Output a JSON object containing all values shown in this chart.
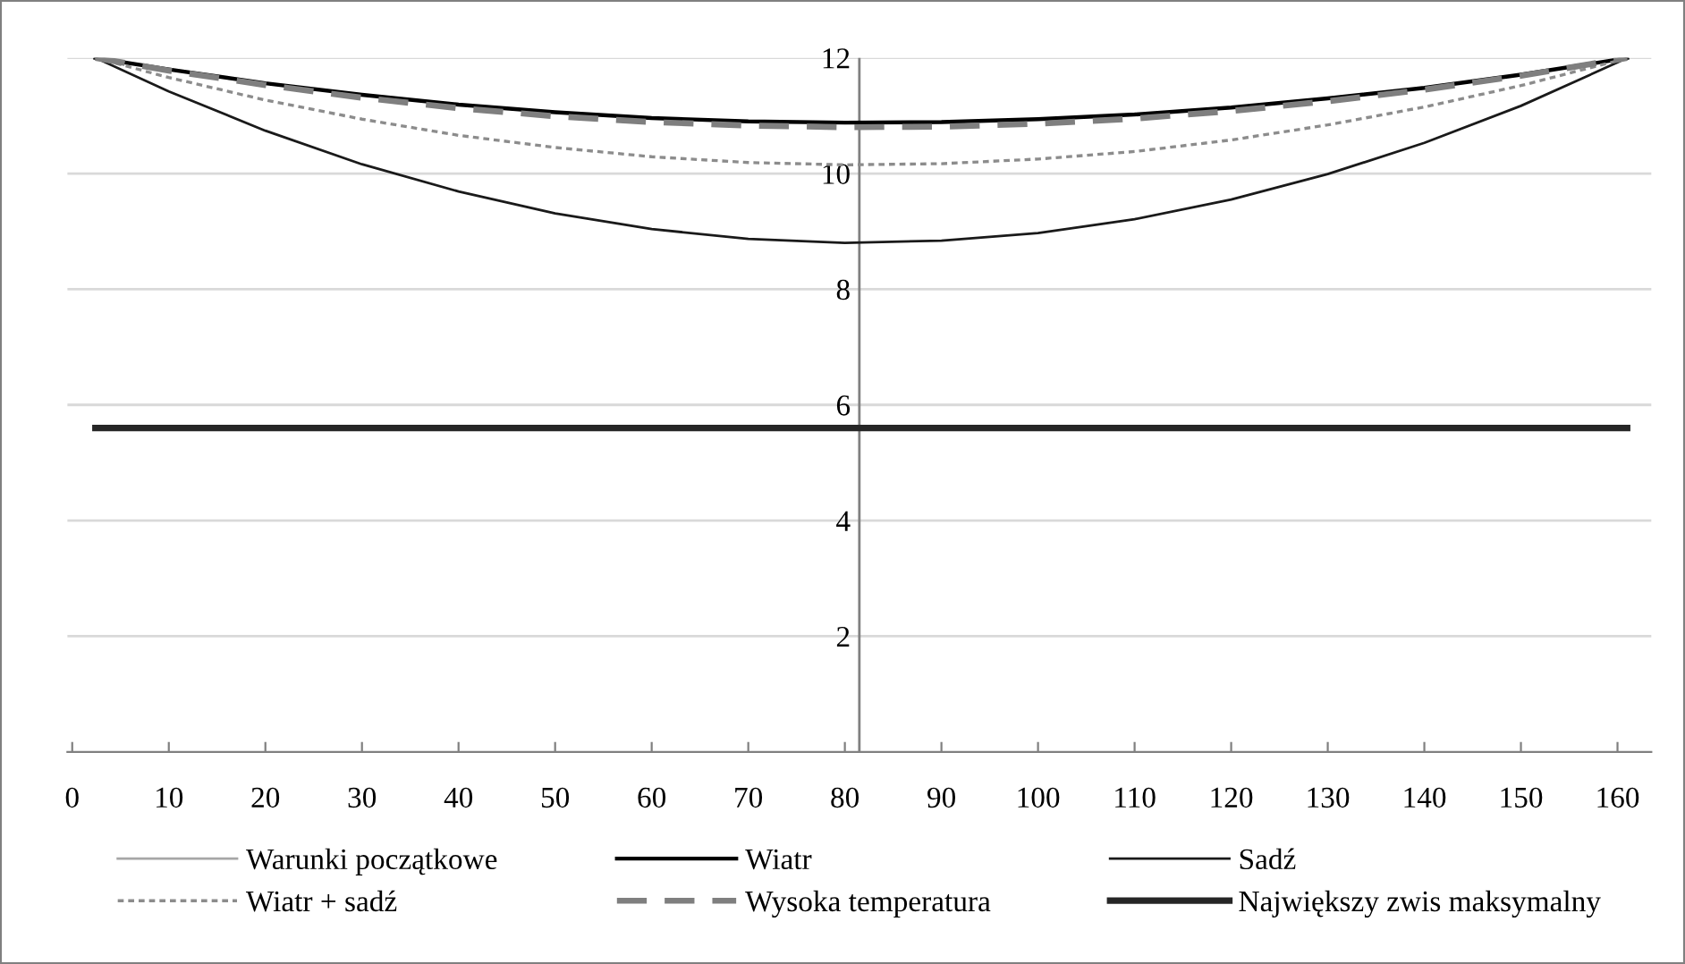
{
  "chart_data": {
    "type": "line",
    "x": [
      2.4,
      10,
      20,
      30,
      40,
      50,
      60,
      70,
      80,
      90,
      100,
      110,
      120,
      130,
      140,
      150,
      160,
      161
    ],
    "series": [
      {
        "name": "Warunki początkowe",
        "color": "#a6a6a6",
        "line_style": "solid",
        "values": [
          null,
          null,
          null,
          null,
          null,
          null,
          null,
          null,
          null,
          null,
          null,
          null,
          null,
          null,
          null,
          null,
          null,
          null
        ]
      },
      {
        "name": "Wiatr",
        "color": "#000000",
        "line_style": "solid",
        "values": [
          12,
          11.8,
          11.56,
          11.36,
          11.19,
          11.06,
          10.96,
          10.9,
          10.88,
          10.89,
          10.94,
          11.02,
          11.14,
          11.3,
          11.48,
          11.71,
          11.97,
          12
        ]
      },
      {
        "name": "Sadź",
        "color": "#1a1a1a",
        "line_style": "solid",
        "values": [
          12,
          11.42,
          10.74,
          10.16,
          9.69,
          9.31,
          9.04,
          8.87,
          8.8,
          8.84,
          8.97,
          9.21,
          9.55,
          9.99,
          10.53,
          11.17,
          11.92,
          12
        ]
      },
      {
        "name": "Wiatr + sadź",
        "color": "#8c8c8c",
        "line_style": "dotted",
        "values": [
          12,
          11.66,
          11.27,
          10.94,
          10.66,
          10.45,
          10.29,
          10.19,
          10.15,
          10.17,
          10.25,
          10.38,
          10.58,
          10.84,
          11.15,
          11.52,
          11.95,
          12
        ]
      },
      {
        "name": "Wysoka temperatura",
        "color": "#7f7f7f",
        "line_style": "dashed",
        "values": [
          12,
          11.78,
          11.53,
          11.31,
          11.13,
          10.99,
          10.89,
          10.83,
          10.8,
          10.81,
          10.86,
          10.95,
          11.08,
          11.25,
          11.45,
          11.69,
          11.97,
          12
        ]
      },
      {
        "name": "Największy zwis maksymalny",
        "color": "#262626",
        "line_style": "solid",
        "x": [
          2.4,
          161
        ],
        "values": [
          5.6,
          5.6
        ]
      }
    ],
    "xlim": [
      -0.5,
      163.5
    ],
    "xticks": [
      0,
      10,
      20,
      30,
      40,
      50,
      60,
      70,
      80,
      90,
      100,
      110,
      120,
      130,
      140,
      150,
      160
    ],
    "ylim": [
      0,
      12
    ],
    "yticks": [
      2,
      4,
      6,
      8,
      10,
      12
    ],
    "ref_lines": [
      {
        "axis": "x",
        "value": 81.5,
        "color": "#808080"
      }
    ],
    "grid": "y",
    "legend": "bottom",
    "marker": "none"
  }
}
